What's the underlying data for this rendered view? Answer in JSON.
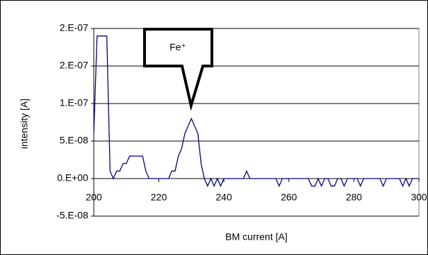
{
  "chart_data": {
    "type": "line",
    "xlabel": "BM current [A]",
    "ylabel": "intensity [A]",
    "annotation": "Fe⁺",
    "x": [
      200,
      201,
      202,
      203,
      204,
      205,
      206,
      207,
      208,
      209,
      210,
      211,
      212,
      213,
      214,
      215,
      216,
      217,
      218,
      219,
      220,
      221,
      222,
      223,
      224,
      225,
      226,
      227,
      228,
      229,
      230,
      231,
      232,
      233,
      234,
      235,
      236,
      237,
      238,
      239,
      240,
      241,
      242,
      243,
      244,
      245,
      246,
      247,
      248,
      249,
      250,
      251,
      252,
      253,
      254,
      255,
      256,
      257,
      258,
      259,
      260,
      261,
      262,
      263,
      264,
      265,
      266,
      267,
      268,
      269,
      270,
      271,
      272,
      273,
      274,
      275,
      276,
      277,
      278,
      279,
      280,
      281,
      282,
      283,
      284,
      285,
      286,
      287,
      288,
      289,
      290,
      291,
      292,
      293,
      294,
      295,
      296,
      297,
      298,
      299,
      300
    ],
    "series": [
      {
        "color": "#000080",
        "values": [
          6e-08,
          1.9e-07,
          1.9e-07,
          1.9e-07,
          1.9e-07,
          1e-08,
          0,
          1e-08,
          1e-08,
          2e-08,
          2e-08,
          3e-08,
          3e-08,
          3e-08,
          3e-08,
          3e-08,
          1e-08,
          0,
          0,
          0,
          0,
          0,
          0,
          0,
          1e-08,
          1e-08,
          3e-08,
          4e-08,
          6e-08,
          7e-08,
          8e-08,
          7e-08,
          6e-08,
          2e-08,
          0,
          -1e-08,
          0,
          -1e-08,
          0,
          -1e-08,
          0,
          0,
          0,
          0,
          0,
          0,
          0,
          1e-08,
          0,
          0,
          0,
          0,
          0,
          0,
          0,
          0,
          0,
          -1e-08,
          0,
          0,
          0,
          0,
          0,
          0,
          0,
          0,
          0,
          -1e-08,
          -1e-08,
          0,
          -1e-08,
          0,
          0,
          -1e-08,
          -1e-08,
          0,
          0,
          -1e-08,
          0,
          0,
          0,
          0,
          -1e-08,
          0,
          0,
          0,
          0,
          0,
          0,
          -1e-08,
          0,
          0,
          0,
          0,
          0,
          -1e-08,
          0,
          -1e-08,
          0,
          0,
          0
        ]
      }
    ],
    "xlim": [
      200,
      300
    ],
    "xticks": [
      200,
      220,
      240,
      260,
      280,
      300
    ],
    "ylim": [
      -5e-08,
      2e-07
    ],
    "yticks": [
      {
        "value": -5e-08,
        "label": "-5.E-08"
      },
      {
        "value": 0,
        "label": "0.E+00"
      },
      {
        "value": 5e-08,
        "label": "5.E-08"
      },
      {
        "value": 1e-07,
        "label": "1.E-07"
      },
      {
        "value": 1.5e-07,
        "label": "2.E-07"
      },
      {
        "value": 2e-07,
        "label": "2.E-07"
      }
    ],
    "grid": true
  }
}
